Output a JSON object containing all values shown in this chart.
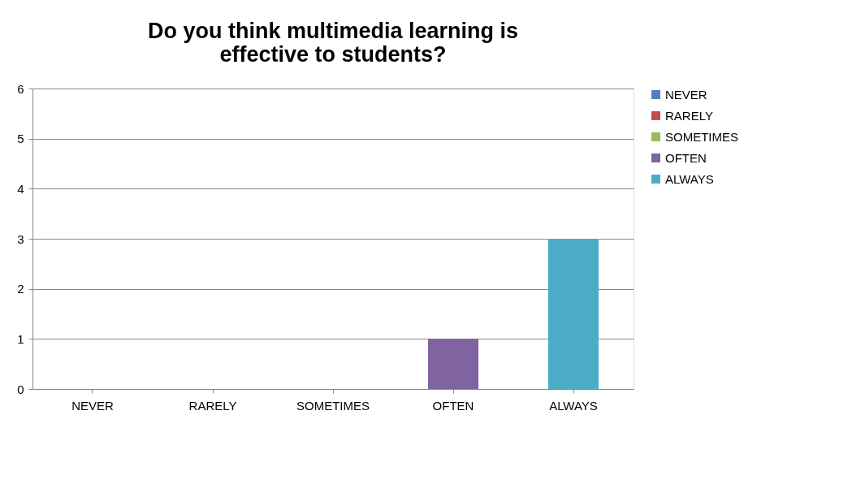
{
  "chart_data": {
    "type": "bar",
    "title": "Do you think multimedia learning is effective to students?",
    "categories": [
      "NEVER",
      "RARELY",
      "SOMETIMES",
      "OFTEN",
      "ALWAYS"
    ],
    "series": [
      {
        "name": "NEVER",
        "color": "#4f81bd",
        "values": [
          0,
          null,
          null,
          null,
          null
        ]
      },
      {
        "name": "RARELY",
        "color": "#c0504d",
        "values": [
          null,
          0,
          null,
          null,
          null
        ]
      },
      {
        "name": "SOMETIMES",
        "color": "#9bbb59",
        "values": [
          null,
          null,
          0,
          null,
          null
        ]
      },
      {
        "name": "OFTEN",
        "color": "#8064a2",
        "values": [
          null,
          null,
          null,
          1,
          null
        ]
      },
      {
        "name": "ALWAYS",
        "color": "#4bacc6",
        "values": [
          null,
          null,
          null,
          null,
          3
        ]
      }
    ],
    "ylim": [
      0,
      6
    ],
    "yticks": [
      0,
      1,
      2,
      3,
      4,
      5,
      6
    ],
    "grid": "y",
    "legend": "right"
  }
}
